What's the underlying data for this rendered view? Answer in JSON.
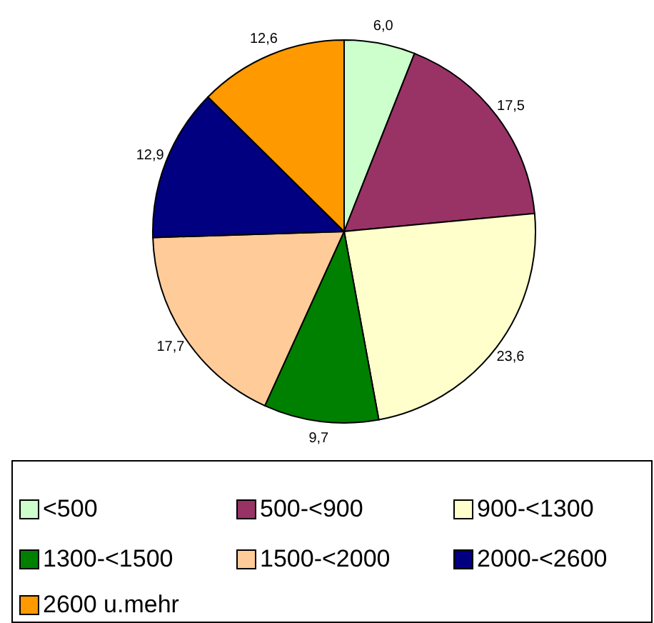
{
  "chart_data": {
    "type": "pie",
    "categories": [
      "<500",
      "500-<900",
      "900-<1300",
      "1300-<1500",
      "1500-<2000",
      "2000-<2600",
      "2600 u.mehr"
    ],
    "values": [
      6.0,
      17.5,
      23.6,
      9.7,
      17.7,
      12.9,
      12.6
    ],
    "value_labels": [
      "6,0",
      "17,5",
      "23,6",
      "9,7",
      "17,7",
      "12,9",
      "12,6"
    ],
    "colors": [
      "#ccffcc",
      "#993366",
      "#ffffcc",
      "#008000",
      "#ffcc99",
      "#000080",
      "#ff9900"
    ],
    "legend": "bottom"
  }
}
